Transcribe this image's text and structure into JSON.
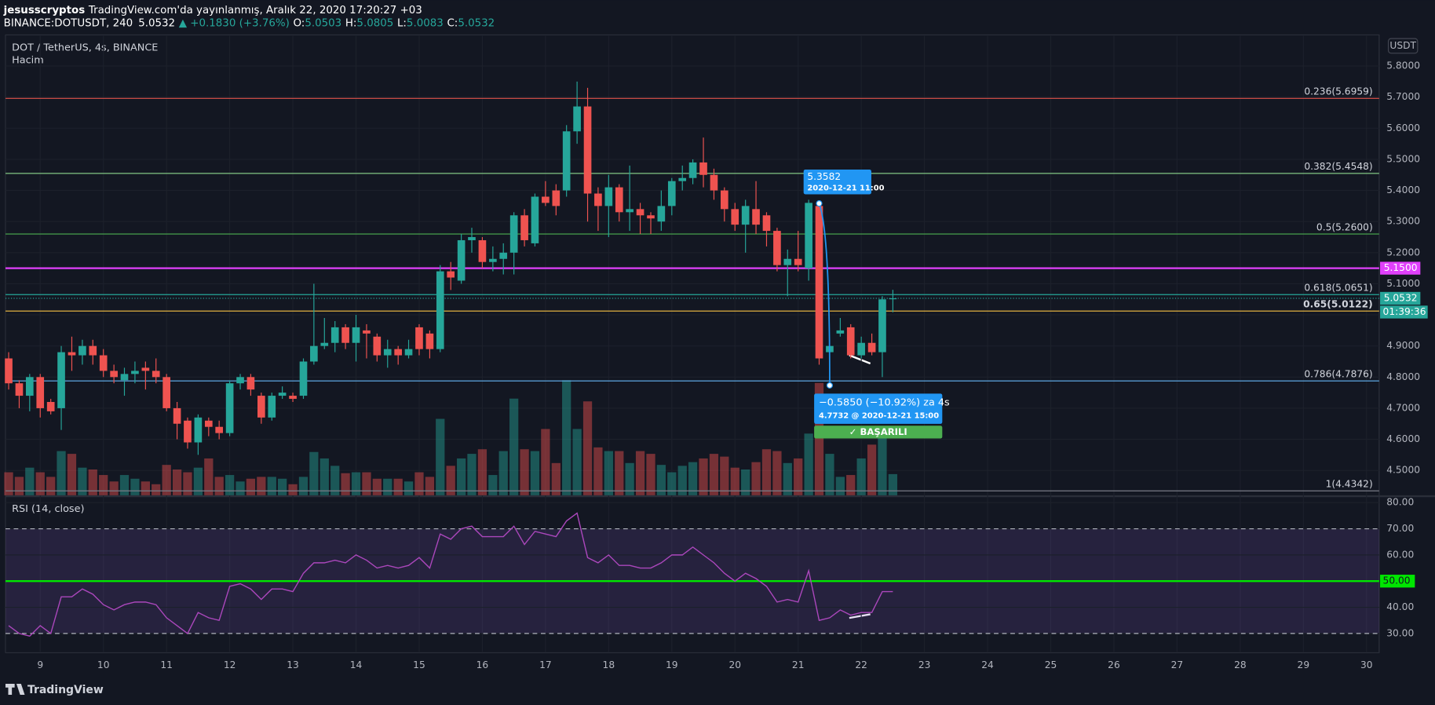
{
  "header": {
    "author": "jesusscryptos",
    "title": "TradingView.com'da yayınlanmış, Aralık 22, 2020 17:20:27 +03",
    "symbol": "BINANCE:DOTUSDT, 240",
    "price": "5.0532",
    "change": "▲ +0.1830 (+3.76%)",
    "ohlc": [
      {
        "label": "O:",
        "value": "5.0503"
      },
      {
        "label": "H:",
        "value": "5.0805"
      },
      {
        "label": "L:",
        "value": "5.0083"
      },
      {
        "label": "C:",
        "value": "5.0532"
      }
    ]
  },
  "footer": {
    "brand": "TradingView"
  },
  "chart_data": [
    {
      "type": "candlestick",
      "title": "DOT / TetherUS, 4s, BINANCE",
      "volume_label": "Hacim",
      "currency": "USDT",
      "up_color": "#26a69a",
      "down_color": "#ef5350",
      "x": [
        8.5,
        8.667,
        8.833,
        9,
        9.167,
        9.333,
        9.5,
        9.667,
        9.833,
        10,
        10.167,
        10.333,
        10.5,
        10.667,
        10.833,
        11,
        11.167,
        11.333,
        11.5,
        11.667,
        11.833,
        12,
        12.167,
        12.333,
        12.5,
        12.667,
        12.833,
        13,
        13.167,
        13.333,
        13.5,
        13.667,
        13.833,
        14,
        14.167,
        14.333,
        14.5,
        14.667,
        14.833,
        15,
        15.167,
        15.333,
        15.5,
        15.667,
        15.833,
        16,
        16.167,
        16.333,
        16.5,
        16.667,
        16.833,
        17,
        17.167,
        17.333,
        17.5,
        17.667,
        17.833,
        18,
        18.167,
        18.333,
        18.5,
        18.667,
        18.833,
        19,
        19.167,
        19.333,
        19.5,
        19.667,
        19.833,
        20,
        20.167,
        20.333,
        20.5,
        20.667,
        20.833,
        21,
        21.167,
        21.333,
        21.5,
        21.667,
        21.833,
        22,
        22.167,
        22.333,
        22.5
      ],
      "open": [
        4.86,
        4.78,
        4.74,
        4.8,
        4.72,
        4.7,
        4.88,
        4.87,
        4.9,
        4.87,
        4.82,
        4.79,
        4.81,
        4.83,
        4.82,
        4.8,
        4.7,
        4.66,
        4.59,
        4.66,
        4.64,
        4.62,
        4.78,
        4.8,
        4.74,
        4.67,
        4.74,
        4.74,
        4.74,
        4.85,
        4.9,
        4.91,
        4.96,
        4.91,
        4.95,
        4.93,
        4.87,
        4.89,
        4.87,
        4.96,
        4.94,
        4.89,
        5.14,
        5.11,
        5.24,
        5.24,
        5.17,
        5.18,
        5.2,
        5.32,
        5.23,
        5.38,
        5.4,
        5.4,
        5.59,
        5.67,
        5.39,
        5.35,
        5.41,
        5.33,
        5.34,
        5.32,
        5.3,
        5.35,
        5.43,
        5.44,
        5.49,
        5.45,
        5.4,
        5.34,
        5.29,
        5.34,
        5.32,
        5.27,
        5.16,
        5.18,
        5.15,
        5.35,
        4.88,
        4.94,
        4.96,
        4.87,
        4.91,
        4.88,
        5.0503
      ],
      "high": [
        4.88,
        4.79,
        4.81,
        4.81,
        4.73,
        4.9,
        4.93,
        4.92,
        4.92,
        4.89,
        4.84,
        4.83,
        4.85,
        4.85,
        4.86,
        4.81,
        4.72,
        4.67,
        4.68,
        4.67,
        4.66,
        4.79,
        4.81,
        4.81,
        4.75,
        4.75,
        4.77,
        4.75,
        4.86,
        5.1,
        4.99,
        4.98,
        4.97,
        5.0,
        4.97,
        4.94,
        4.92,
        4.9,
        4.92,
        4.97,
        4.95,
        5.16,
        5.17,
        5.26,
        5.28,
        5.25,
        5.22,
        5.23,
        5.33,
        5.34,
        5.39,
        5.43,
        5.42,
        5.61,
        5.75,
        5.73,
        5.41,
        5.45,
        5.42,
        5.48,
        5.36,
        5.33,
        5.4,
        5.44,
        5.48,
        5.5,
        5.57,
        5.47,
        5.41,
        5.36,
        5.37,
        5.43,
        5.33,
        5.28,
        5.21,
        5.27,
        5.37,
        5.3582,
        4.92,
        4.99,
        4.97,
        4.93,
        4.94,
        5.06,
        5.0805
      ],
      "low": [
        4.76,
        4.7,
        4.69,
        4.67,
        4.68,
        4.63,
        4.82,
        4.84,
        4.84,
        4.8,
        4.78,
        4.74,
        4.78,
        4.76,
        4.78,
        4.69,
        4.6,
        4.57,
        4.55,
        4.61,
        4.6,
        4.61,
        4.76,
        4.74,
        4.65,
        4.66,
        4.73,
        4.72,
        4.73,
        4.84,
        4.89,
        4.88,
        4.89,
        4.85,
        4.86,
        4.85,
        4.83,
        4.84,
        4.86,
        4.87,
        4.86,
        4.88,
        5.08,
        5.1,
        5.2,
        5.15,
        5.14,
        5.13,
        5.13,
        5.22,
        5.22,
        5.35,
        5.32,
        5.38,
        5.55,
        5.3,
        5.27,
        5.25,
        5.3,
        5.27,
        5.26,
        5.26,
        5.27,
        5.32,
        5.4,
        5.42,
        5.41,
        5.37,
        5.3,
        5.27,
        5.2,
        5.26,
        5.22,
        5.14,
        5.06,
        5.14,
        5.11,
        4.84,
        4.7732,
        4.93,
        4.86,
        4.86,
        4.87,
        4.8,
        5.0083
      ],
      "close": [
        4.78,
        4.74,
        4.8,
        4.7,
        4.69,
        4.88,
        4.87,
        4.9,
        4.87,
        4.82,
        4.8,
        4.81,
        4.82,
        4.82,
        4.8,
        4.7,
        4.65,
        4.59,
        4.67,
        4.64,
        4.62,
        4.78,
        4.8,
        4.76,
        4.67,
        4.74,
        4.75,
        4.73,
        4.85,
        4.9,
        4.91,
        4.96,
        4.91,
        4.96,
        4.94,
        4.87,
        4.89,
        4.87,
        4.89,
        4.89,
        4.89,
        5.14,
        5.12,
        5.24,
        5.25,
        5.17,
        5.18,
        5.2,
        5.32,
        5.24,
        5.38,
        5.36,
        5.35,
        5.59,
        5.67,
        5.39,
        5.35,
        5.41,
        5.33,
        5.34,
        5.32,
        5.31,
        5.35,
        5.43,
        5.44,
        5.49,
        5.45,
        5.4,
        5.34,
        5.29,
        5.35,
        5.29,
        5.27,
        5.16,
        5.18,
        5.16,
        5.36,
        4.86,
        4.9,
        4.95,
        4.87,
        4.91,
        4.88,
        5.05,
        5.0532
      ],
      "volume": [
        25,
        20,
        30,
        25,
        20,
        48,
        45,
        30,
        28,
        22,
        15,
        22,
        18,
        15,
        12,
        33,
        28,
        25,
        30,
        40,
        20,
        22,
        15,
        18,
        20,
        20,
        18,
        12,
        20,
        47,
        40,
        32,
        24,
        25,
        25,
        18,
        18,
        18,
        15,
        25,
        20,
        83,
        32,
        40,
        45,
        50,
        22,
        48,
        105,
        50,
        48,
        72,
        35,
        125,
        72,
        102,
        52,
        48,
        48,
        35,
        48,
        45,
        33,
        25,
        32,
        36,
        40,
        45,
        42,
        30,
        28,
        36,
        50,
        48,
        35,
        40,
        67,
        122,
        45,
        20,
        22,
        40,
        55,
        65,
        23
      ],
      "xlim": [
        8.45,
        30.2
      ],
      "xticks": [
        9,
        10,
        11,
        12,
        13,
        14,
        15,
        16,
        17,
        18,
        19,
        20,
        21,
        22,
        23,
        24,
        25,
        26,
        27,
        28,
        29,
        30
      ],
      "ylim": [
        4.42,
        5.9
      ],
      "yticks": [
        {
          "value": 4.5,
          "label": "4.5000"
        },
        {
          "value": 4.6,
          "label": "4.6000"
        },
        {
          "value": 4.7,
          "label": "4.7000"
        },
        {
          "value": 4.8,
          "label": "4.8000"
        },
        {
          "value": 4.9,
          "label": "4.9000"
        },
        {
          "value": 5.0,
          "label": "5.0000"
        },
        {
          "value": 5.1,
          "label": "5.1000"
        },
        {
          "value": 5.2,
          "label": "5.2000"
        },
        {
          "value": 5.3,
          "label": "5.3000"
        },
        {
          "value": 5.4,
          "label": "5.4000"
        },
        {
          "value": 5.5,
          "label": "5.5000"
        },
        {
          "value": 5.6,
          "label": "5.6000"
        },
        {
          "value": 5.7,
          "label": "5.7000"
        },
        {
          "value": 5.8,
          "label": "5.8000"
        }
      ],
      "levels": [
        {
          "value": 5.6959,
          "label": "0.236(5.6959)",
          "color": "#e0524a"
        },
        {
          "value": 5.4548,
          "label": "0.382(5.4548)",
          "color": "#81c784"
        },
        {
          "value": 5.26,
          "label": "0.5(5.2600)",
          "color": "#4caf50"
        },
        {
          "value": 5.0651,
          "label": "0.618(5.0651)",
          "color": "#26a69a"
        },
        {
          "value": 5.0122,
          "label": "0.65(5.0122)",
          "color": "#f7c244"
        },
        {
          "value": 4.7876,
          "label": "0.786(4.7876)",
          "color": "#64b5f6"
        },
        {
          "value": 4.4342,
          "label": "1(4.4342)",
          "color": "#787b86"
        }
      ],
      "hline": {
        "value": 5.15,
        "label": "5.1500",
        "color": "#e040fb"
      },
      "last": {
        "value": 5.0532,
        "label": "5.0532",
        "countdown": "01:39:36",
        "color": "#26a69a"
      },
      "high_note": {
        "value": 5.3582,
        "label": "5.3582",
        "date": "2020-12-21 11:00"
      },
      "measure": {
        "value": 4.7732,
        "text": "−0.5850 (−10.92%) za 4s",
        "detail": "4.7732 @ 2020-12-21  15:00",
        "status": "✓ BAŞARILI"
      }
    },
    {
      "type": "line",
      "title": "RSI (14, close)",
      "color": "#ab47bc",
      "values": [
        33,
        30,
        29,
        33,
        30,
        44,
        44,
        47,
        45,
        41,
        39,
        41,
        42,
        42,
        41,
        36,
        33,
        30,
        38,
        36,
        35,
        48,
        49,
        47,
        43,
        47,
        47,
        46,
        53,
        57,
        57,
        58,
        57,
        60,
        58,
        55,
        56,
        55,
        56,
        59,
        55,
        68,
        66,
        70,
        71,
        67,
        67,
        67,
        71,
        64,
        69,
        68,
        67,
        73,
        76,
        59,
        57,
        60,
        56,
        56,
        55,
        55,
        57,
        60,
        60,
        63,
        60,
        57,
        53,
        50,
        53,
        51,
        48,
        42,
        43,
        42,
        54,
        35,
        36,
        39,
        37,
        38,
        38,
        46,
        46
      ],
      "ylim": [
        23,
        82.1
      ],
      "yticks": [
        {
          "value": 30,
          "label": "30.00"
        },
        {
          "value": 40,
          "label": "40.00"
        },
        {
          "value": 50,
          "label": "50.00"
        },
        {
          "value": 60,
          "label": "60.00"
        },
        {
          "value": 70,
          "label": "70.00"
        },
        {
          "value": 80,
          "label": "80.00"
        }
      ],
      "bands": [
        30,
        70
      ],
      "midline": {
        "value": 50,
        "label": "50.00",
        "color": "#00e600"
      }
    }
  ]
}
